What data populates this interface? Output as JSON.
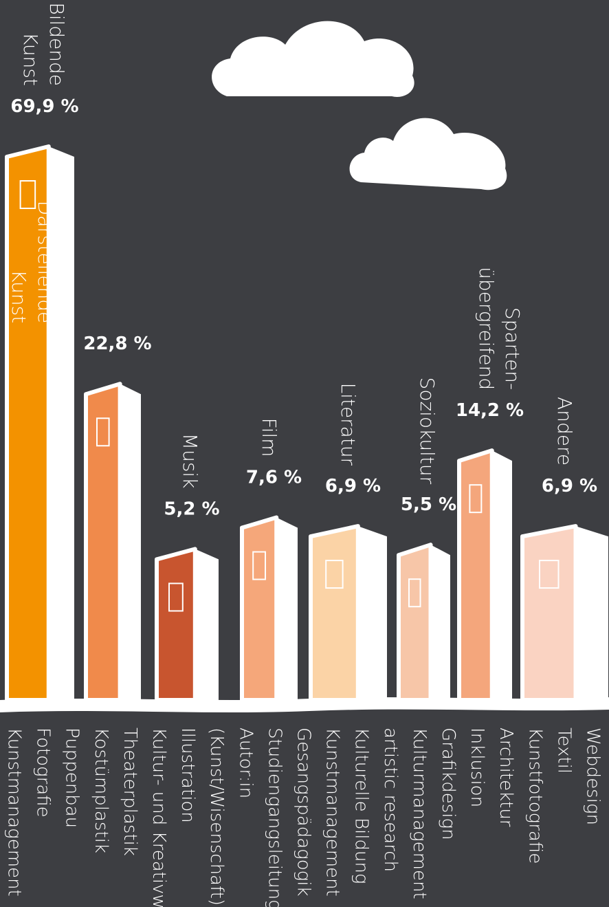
{
  "chart_data": {
    "type": "bar",
    "categories": [
      [
        "Bildende",
        "Kunst"
      ],
      [
        "Darstellende",
        "Kunst"
      ],
      [
        "Musik"
      ],
      [
        "Film"
      ],
      [
        "Literatur"
      ],
      [
        "Soziokultur"
      ],
      [
        "Sparten-",
        "übergreifend"
      ],
      [
        "Andere"
      ]
    ],
    "values": [
      69.9,
      22.8,
      5.2,
      7.6,
      6.9,
      5.5,
      14.2,
      6.9
    ],
    "value_labels": [
      "69,9 %",
      "22,8 %",
      "5,2 %",
      "7,6 %",
      "6,9 %",
      "5,5 %",
      "14,2 %",
      "6,9 %"
    ],
    "colors": [
      "#f39200",
      "#f08a4b",
      "#c8552f",
      "#f5a77a",
      "#fbd3a6",
      "#f7c6a8",
      "#f4a67c",
      "#fad3c2"
    ],
    "highlight_color": "#f39200"
  },
  "details": [
    "Webdesign",
    "Textil",
    "Kunstfotografie",
    "Architektur",
    "Inklusion",
    "Grafikdesign",
    "Kulturmanagement",
    "artistic research",
    "Kulturelle Bildung",
    "Kunstmanagement",
    "Gesangspädagogik",
    "Studiengangsleitung",
    "Autor:in",
    "(Kunst/Wisenschaft)",
    "Illustration",
    "Kultur- und Kreativw",
    "Theaterplastik",
    "Kostümplastik",
    "Puppenbau",
    "Fotografie",
    "Kunstmanagement"
  ]
}
